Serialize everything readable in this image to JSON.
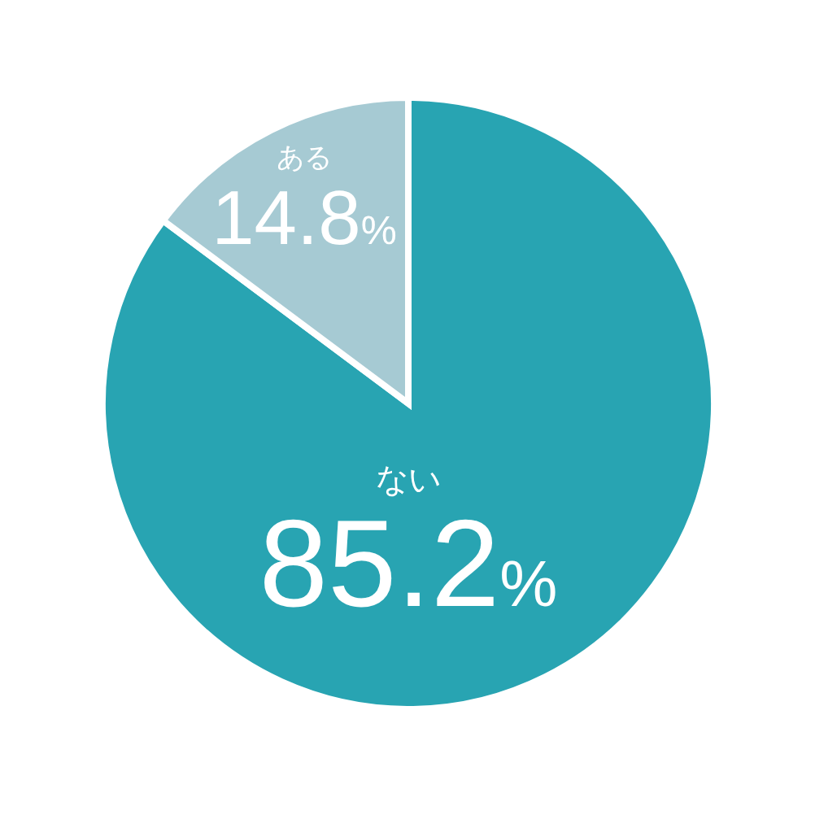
{
  "chart_data": {
    "type": "pie",
    "categories": [
      "ない",
      "ある"
    ],
    "values": [
      85.2,
      14.8
    ],
    "colors": [
      "#28a4b2",
      "#a6cad3"
    ],
    "value_labels": [
      "85.2%",
      "14.8%"
    ]
  }
}
